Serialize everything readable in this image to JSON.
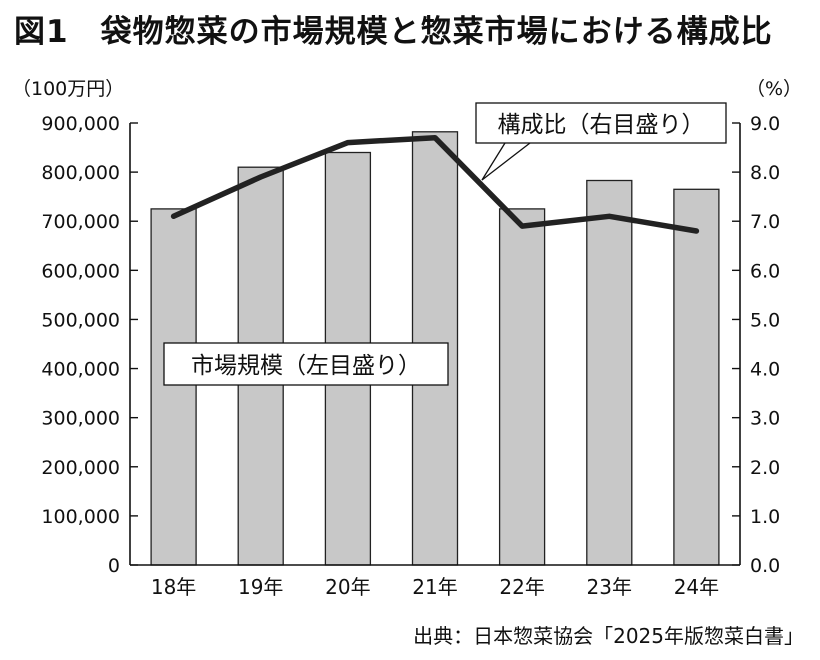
{
  "title": "図1　袋物惣菜の市場規模と惣菜市場における構成比",
  "source": "出典：日本惣菜協会「2025年版惣菜白書」",
  "chart_data": {
    "type": "bar+line",
    "title": "図1　袋物惣菜の市場規模と惣菜市場における構成比",
    "categories": [
      "18年",
      "19年",
      "20年",
      "21年",
      "22年",
      "23年",
      "24年"
    ],
    "left_axis": {
      "unit": "（100万円）",
      "range": [
        0,
        900000
      ],
      "ticks": [
        "0",
        "100,000",
        "200,000",
        "300,000",
        "400,000",
        "500,000",
        "600,000",
        "700,000",
        "800,000",
        "900,000"
      ]
    },
    "right_axis": {
      "unit": "（%）",
      "range": [
        0,
        9
      ],
      "ticks": [
        "0.0",
        "1.0",
        "2.0",
        "3.0",
        "4.0",
        "5.0",
        "6.0",
        "7.0",
        "8.0",
        "9.0"
      ]
    },
    "series": [
      {
        "name": "市場規模（左目盛り）",
        "type": "bar",
        "axis": "left",
        "color": "#c8c8c8",
        "values": [
          725000,
          810000,
          840000,
          882000,
          725000,
          783000,
          765000
        ]
      },
      {
        "name": "構成比（右目盛り）",
        "type": "line",
        "axis": "right",
        "color": "#222222",
        "values": [
          7.1,
          7.9,
          8.6,
          8.7,
          6.9,
          7.1,
          6.8
        ]
      }
    ],
    "grid": false
  }
}
